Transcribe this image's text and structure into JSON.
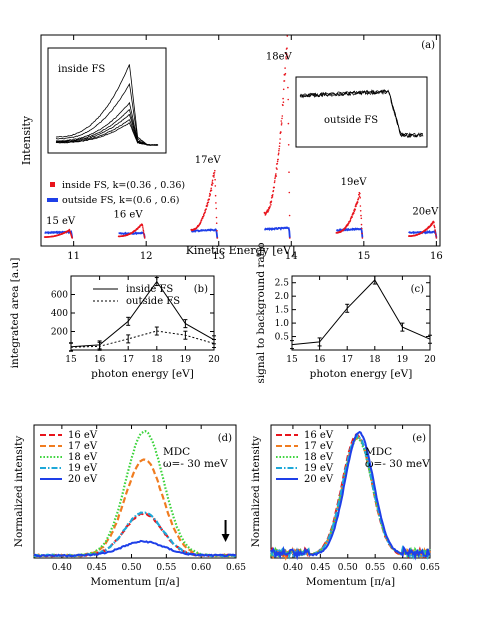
{
  "chart_data": [
    {
      "panel": "(a)",
      "type": "scatter",
      "xlabel": "Kinetic Energy [eV]",
      "ylabel": "Intensity",
      "xlim": [
        10.55,
        16.05
      ],
      "ylim": [
        0,
        1
      ],
      "xticks": [
        11,
        12,
        13,
        14,
        15,
        16
      ],
      "legend": "middle-left",
      "series": [
        {
          "name": "inside FS, k=(0.36 , 0.36)",
          "color": "#e8141c"
        },
        {
          "name": "outside FS, k=(0.6 , 0.6)",
          "color": "#1e3fe8"
        }
      ],
      "peaks": [
        {
          "label": "15 eV",
          "x_start": 10.6,
          "x_end": 10.98,
          "inside_max": 0.04,
          "outside_max": 0.03,
          "label_x": 10.62,
          "label_y": 0.07
        },
        {
          "label": "16 eV",
          "x_start": 11.62,
          "x_end": 11.98,
          "inside_max": 0.07,
          "outside_max": 0.025,
          "label_x": 11.55,
          "label_y": 0.1
        },
        {
          "label": "17eV",
          "x_start": 12.62,
          "x_end": 12.98,
          "inside_max": 0.33,
          "outside_max": 0.04,
          "label_x": 12.67,
          "label_y": 0.37
        },
        {
          "label": "18eV",
          "x_start": 13.63,
          "x_end": 13.98,
          "inside_max": 1.0,
          "outside_max": 0.05,
          "label_x": 13.65,
          "label_y": 0.88
        },
        {
          "label": "19eV",
          "x_start": 14.62,
          "x_end": 14.98,
          "inside_max": 0.22,
          "outside_max": 0.045,
          "label_x": 14.68,
          "label_y": 0.26
        },
        {
          "label": "20eV",
          "x_start": 15.62,
          "x_end": 16.0,
          "inside_max": 0.08,
          "outside_max": 0.03,
          "label_x": 15.67,
          "label_y": 0.115
        }
      ],
      "panel_label": "(a)",
      "insets": [
        {
          "label": "inside FS",
          "type": "line"
        },
        {
          "label": "outside FS",
          "type": "line"
        }
      ]
    },
    {
      "panel": "(b)",
      "type": "line",
      "xlabel": "photon energy [eV]",
      "ylabel": "integrated area [a.u]",
      "xlim": [
        15,
        20
      ],
      "ylim": [
        0,
        800
      ],
      "xticks": [
        15,
        16,
        17,
        18,
        19,
        20
      ],
      "yticks": [
        200,
        400,
        600
      ],
      "legend": "top-right",
      "series": [
        {
          "name": "inside FS",
          "style": "solid",
          "x": [
            15,
            16,
            17,
            18,
            19,
            20
          ],
          "values": [
            35,
            55,
            310,
            740,
            285,
            110
          ]
        },
        {
          "name": "outside FS",
          "style": "dotted",
          "x": [
            15,
            16,
            17,
            18,
            19,
            20
          ],
          "values": [
            30,
            40,
            120,
            205,
            160,
            70
          ]
        }
      ],
      "panel_label": "(b)"
    },
    {
      "panel": "(c)",
      "type": "line",
      "xlabel": "photon energy [eV]",
      "ylabel": "signal to background ratio",
      "xlim": [
        15,
        20
      ],
      "ylim": [
        0,
        2.75
      ],
      "xticks": [
        15,
        16,
        17,
        18,
        19,
        20
      ],
      "yticks": [
        "0.5",
        "1.0",
        "1.5",
        "2.0",
        "2.5"
      ],
      "series": [
        {
          "name": "",
          "style": "solid",
          "x": [
            15,
            16,
            17,
            18,
            19,
            20
          ],
          "values": [
            0.2,
            0.3,
            1.55,
            2.6,
            0.85,
            0.4
          ]
        }
      ],
      "panel_label": "(c)"
    },
    {
      "panel": "(d)",
      "type": "line",
      "xlabel": "Momentum [π/a]",
      "ylabel": "Normalized intensity",
      "xlim": [
        0.36,
        0.65
      ],
      "ylim": [
        0,
        1.05
      ],
      "xticks": [
        "0.40",
        "0.45",
        "0.50",
        "0.55",
        "0.60",
        "0.65"
      ],
      "legend": "top-left",
      "annotation": [
        "MDC",
        "ω=- 30 meV"
      ],
      "arrow_x": 0.635,
      "series": [
        {
          "name": "16 eV",
          "color": "#e8141c",
          "style": "dashed",
          "center": 0.517,
          "width": 0.027,
          "amplitude": 0.33
        },
        {
          "name": "17 eV",
          "color": "#f07c20",
          "style": "dashed",
          "center": 0.518,
          "width": 0.027,
          "amplitude": 0.76
        },
        {
          "name": "18 eV",
          "color": "#3fd43f",
          "style": "dotted",
          "center": 0.519,
          "width": 0.027,
          "amplitude": 0.98
        },
        {
          "name": "19 eV",
          "color": "#1ea8d8",
          "style": "dashdot",
          "center": 0.517,
          "width": 0.027,
          "amplitude": 0.34
        },
        {
          "name": "20 eV",
          "color": "#1e3fe8",
          "style": "solid",
          "center": 0.517,
          "width": 0.03,
          "amplitude": 0.11
        }
      ],
      "panel_label": "(d)"
    },
    {
      "panel": "(e)",
      "type": "line",
      "xlabel": "Momentum [π/a]",
      "ylabel": "Normalized intensity",
      "xlim": [
        0.36,
        0.65
      ],
      "ylim": [
        0,
        1.05
      ],
      "xticks": [
        "0.40",
        "0.45",
        "0.50",
        "0.55",
        "0.60",
        "0.65"
      ],
      "legend": "top-left",
      "annotation": [
        "MDC",
        "ω=- 30 meV"
      ],
      "series": [
        {
          "name": "16 eV",
          "color": "#e8141c",
          "style": "dashed",
          "center": 0.517,
          "width": 0.027,
          "amplitude": 0.95
        },
        {
          "name": "17 eV",
          "color": "#f07c20",
          "style": "dashed",
          "center": 0.518,
          "width": 0.027,
          "amplitude": 0.93
        },
        {
          "name": "18 eV",
          "color": "#3fd43f",
          "style": "dotted",
          "center": 0.518,
          "width": 0.027,
          "amplitude": 0.92
        },
        {
          "name": "19 eV",
          "color": "#1ea8d8",
          "style": "dashdot",
          "center": 0.518,
          "width": 0.027,
          "amplitude": 0.94
        },
        {
          "name": "20 eV",
          "color": "#1e3fe8",
          "style": "solid",
          "center": 0.521,
          "width": 0.026,
          "amplitude": 0.97
        }
      ],
      "panel_label": "(e)"
    }
  ]
}
